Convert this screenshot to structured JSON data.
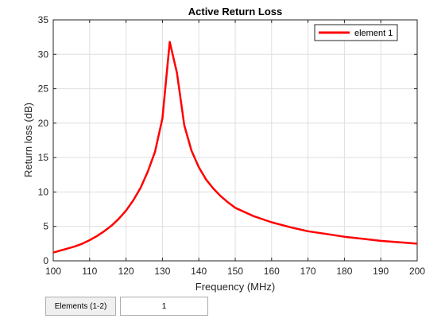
{
  "chart_data": {
    "type": "line",
    "title": "Active Return Loss",
    "xlabel": "Frequency (MHz)",
    "ylabel": "Return loss (dB)",
    "xlim": [
      100,
      200
    ],
    "ylim": [
      0,
      35
    ],
    "xticks": [
      100,
      110,
      120,
      130,
      140,
      150,
      160,
      170,
      180,
      190,
      200
    ],
    "yticks": [
      0,
      5,
      10,
      15,
      20,
      25,
      30,
      35
    ],
    "grid": true,
    "legend_position": "top-right",
    "series": [
      {
        "name": "element 1",
        "color": "#ff0000",
        "x": [
          100,
          102,
          104,
          106,
          108,
          110,
          112,
          114,
          116,
          118,
          120,
          122,
          124,
          126,
          128,
          130,
          132,
          134,
          136,
          138,
          140,
          142,
          144,
          146,
          148,
          150,
          155,
          160,
          165,
          170,
          175,
          180,
          185,
          190,
          195,
          200
        ],
        "y": [
          1.2,
          1.5,
          1.8,
          2.1,
          2.5,
          3.0,
          3.6,
          4.3,
          5.1,
          6.1,
          7.3,
          8.8,
          10.6,
          13.0,
          15.9,
          20.7,
          31.8,
          27.3,
          19.7,
          16.0,
          13.6,
          11.8,
          10.5,
          9.4,
          8.5,
          7.7,
          6.5,
          5.6,
          4.9,
          4.3,
          3.9,
          3.5,
          3.2,
          2.9,
          2.7,
          2.5
        ]
      }
    ]
  },
  "controls": {
    "elements_label": "Elements (1-2)",
    "elements_value": "1"
  }
}
